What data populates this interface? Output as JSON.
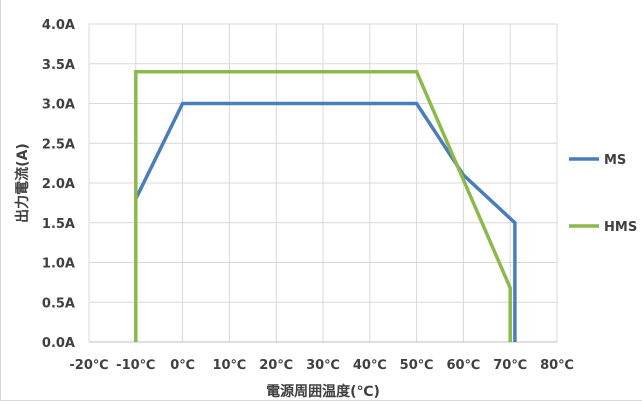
{
  "chart_data": {
    "type": "line",
    "title": "",
    "xlabel": "電源周囲温度(℃)",
    "ylabel": "出力電流(A)",
    "xlim": [
      -20,
      80
    ],
    "ylim": [
      0,
      4
    ],
    "grid": true,
    "x_ticks": [
      {
        "value": -20,
        "label": "-20℃"
      },
      {
        "value": -10,
        "label": "-10℃"
      },
      {
        "value": 0,
        "label": "0℃"
      },
      {
        "value": 10,
        "label": "10℃"
      },
      {
        "value": 20,
        "label": "20℃"
      },
      {
        "value": 30,
        "label": "30℃"
      },
      {
        "value": 40,
        "label": "40℃"
      },
      {
        "value": 50,
        "label": "50℃"
      },
      {
        "value": 60,
        "label": "60℃"
      },
      {
        "value": 70,
        "label": "70℃"
      },
      {
        "value": 80,
        "label": "80℃"
      }
    ],
    "y_ticks": [
      {
        "value": 0,
        "label": "0.0A"
      },
      {
        "value": 0.5,
        "label": "0.5A"
      },
      {
        "value": 1.0,
        "label": "1.0A"
      },
      {
        "value": 1.5,
        "label": "1.5A"
      },
      {
        "value": 2.0,
        "label": "2.0A"
      },
      {
        "value": 2.5,
        "label": "2.5A"
      },
      {
        "value": 3.0,
        "label": "3.0A"
      },
      {
        "value": 3.5,
        "label": "3.5A"
      },
      {
        "value": 4.0,
        "label": "4.0A"
      }
    ],
    "legend_position": "right",
    "series": [
      {
        "name": "MS",
        "color": "#4a7ebb",
        "points": [
          [
            -10,
            1.8
          ],
          [
            0,
            3.0
          ],
          [
            50,
            3.0
          ],
          [
            60,
            2.1
          ],
          [
            71,
            1.5
          ],
          [
            71,
            0
          ]
        ]
      },
      {
        "name": "HMS",
        "color": "#8db84a",
        "points": [
          [
            -10,
            0
          ],
          [
            -10,
            3.4
          ],
          [
            50,
            3.4
          ],
          [
            70,
            0.68
          ],
          [
            70,
            0
          ]
        ]
      }
    ]
  }
}
